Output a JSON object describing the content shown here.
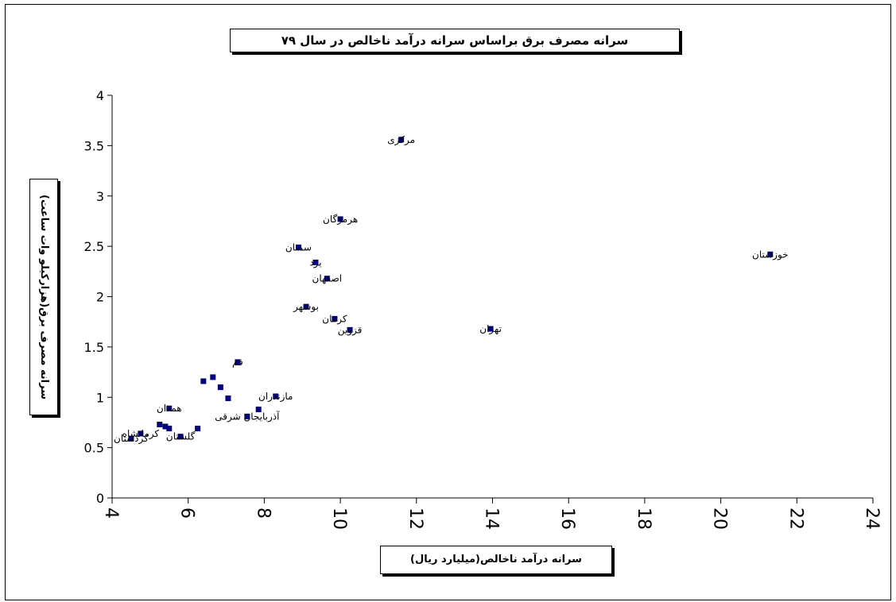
{
  "chart_data": {
    "type": "scatter",
    "title": "سرانه مصرف برق براساس سرانه درآمد ناخالص در سال ۷۹",
    "xlabel": "سرانه درآمد ناخالص(میلیارد ریال)",
    "ylabel": "سرانه مصرف برق(هزارکیلو وات ساعت)",
    "xlim": [
      4,
      24
    ],
    "ylim": [
      0,
      4
    ],
    "x_ticks": [
      "4",
      "6",
      "8",
      "10",
      "12",
      "14",
      "16",
      "18",
      "20",
      "22",
      "24"
    ],
    "y_ticks": [
      "0",
      "0.5",
      "1",
      "1.5",
      "2",
      "2.5",
      "3",
      "3.5",
      "4"
    ],
    "marker_color": "#000080",
    "grid": false,
    "points": [
      {
        "x": 11.6,
        "y": 3.56,
        "label": "مرکزی"
      },
      {
        "x": 21.3,
        "y": 2.42,
        "label": "خوزستان"
      },
      {
        "x": 10.0,
        "y": 2.77,
        "label": "هرمزگان"
      },
      {
        "x": 8.9,
        "y": 2.49,
        "label": "سمنان"
      },
      {
        "x": 9.35,
        "y": 2.34,
        "label": "یزد"
      },
      {
        "x": 9.65,
        "y": 2.18,
        "label": "اصفهان"
      },
      {
        "x": 9.1,
        "y": 1.9,
        "label": "بوشهر"
      },
      {
        "x": 9.85,
        "y": 1.78,
        "label": "کرمان"
      },
      {
        "x": 10.25,
        "y": 1.67,
        "label": "قزوین"
      },
      {
        "x": 13.95,
        "y": 1.68,
        "label": "تهران"
      },
      {
        "x": 7.3,
        "y": 1.35,
        "label": "قم"
      },
      {
        "x": 6.65,
        "y": 1.2,
        "label": ""
      },
      {
        "x": 6.4,
        "y": 1.16,
        "label": ""
      },
      {
        "x": 6.85,
        "y": 1.1,
        "label": ""
      },
      {
        "x": 7.05,
        "y": 0.99,
        "label": ""
      },
      {
        "x": 8.3,
        "y": 1.01,
        "label": "مازندران"
      },
      {
        "x": 7.85,
        "y": 0.88,
        "label": ""
      },
      {
        "x": 7.55,
        "y": 0.81,
        "label": "آذربایجان شرقی"
      },
      {
        "x": 5.5,
        "y": 0.89,
        "label": "همدان"
      },
      {
        "x": 5.25,
        "y": 0.73,
        "label": ""
      },
      {
        "x": 5.4,
        "y": 0.71,
        "label": ""
      },
      {
        "x": 5.5,
        "y": 0.69,
        "label": ""
      },
      {
        "x": 6.25,
        "y": 0.69,
        "label": ""
      },
      {
        "x": 5.8,
        "y": 0.61,
        "label": "گلستان"
      },
      {
        "x": 4.75,
        "y": 0.64,
        "label": "کرمانشاه"
      },
      {
        "x": 4.5,
        "y": 0.59,
        "label": "کردستان"
      }
    ]
  }
}
